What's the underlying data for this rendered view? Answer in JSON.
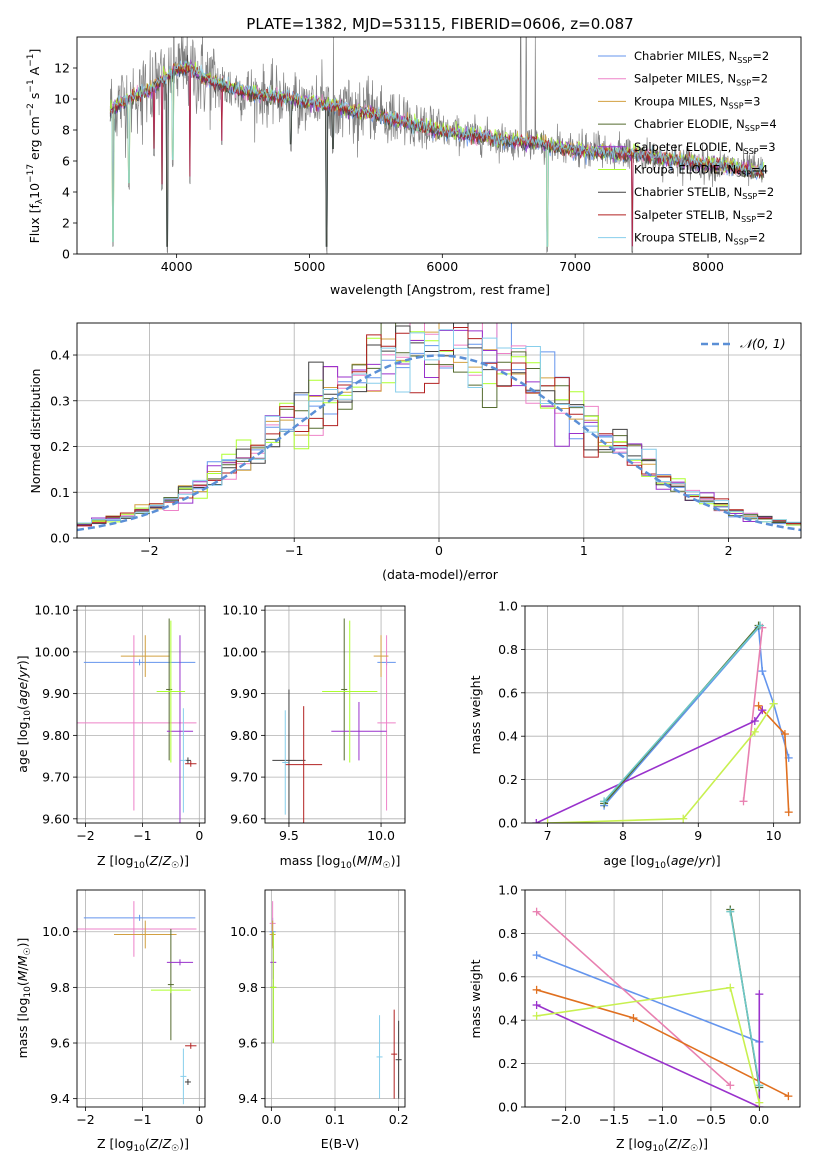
{
  "figure": {
    "title": "PLATE=1382, MJD=53115, FIBERID=0606, z=0.087"
  },
  "series_styles": [
    {
      "name": "Chabrier MILES",
      "legend": "Chabrier MILES, N",
      "sub": "SSP",
      "eq": "=2",
      "color": "#6495ED"
    },
    {
      "name": "Salpeter MILES",
      "legend": "Salpeter MILES, N",
      "sub": "SSP",
      "eq": "=2",
      "color": "#EE82C8"
    },
    {
      "name": "Kroupa MILES",
      "legend": "Kroupa MILES, N",
      "sub": "SSP",
      "eq": "=3",
      "color": "#D2A040"
    },
    {
      "name": "Chabrier ELODIE",
      "legend": "Chabrier ELODIE, N",
      "sub": "SSP",
      "eq": "=4",
      "color": "#556B2F"
    },
    {
      "name": "Salpeter ELODIE",
      "legend": "Salpeter ELODIE, N",
      "sub": "SSP",
      "eq": "=3",
      "color": "#9932CC"
    },
    {
      "name": "Kroupa ELODIE",
      "legend": "Kroupa ELODIE, N",
      "sub": "SSP",
      "eq": "=4",
      "color": "#ADFF2F"
    },
    {
      "name": "Chabrier STELIB",
      "legend": "Chabrier STELIB, N",
      "sub": "SSP",
      "eq": "=2",
      "color": "#404040"
    },
    {
      "name": "Salpeter STELIB",
      "legend": "Salpeter STELIB, N",
      "sub": "SSP",
      "eq": "=2",
      "color": "#B22222"
    },
    {
      "name": "Kroupa STELIB",
      "legend": "Kroupa STELIB, N",
      "sub": "SSP",
      "eq": "=2",
      "color": "#87CEEB"
    }
  ],
  "extra_colors": {
    "data_gray": "#808080",
    "orange": "#E07020",
    "pink": "#E880B0",
    "purple": "#9932CC",
    "lime": "#C8F050",
    "blue": "#6495ED"
  },
  "chart_data": [
    {
      "id": "spectrum",
      "type": "line",
      "xlabel": "wavelength [Angstrom, rest frame]",
      "ylabel": "Flux [f_λ 10^-17 erg cm^-2 s^-1 A^-1]",
      "xlim": [
        3250,
        8700
      ],
      "ylim": [
        0,
        14
      ],
      "xticks": [
        4000,
        5000,
        6000,
        7000,
        8000
      ],
      "yticks": [
        0,
        2,
        4,
        6,
        8,
        10,
        12
      ],
      "grid": false,
      "legend": "top-right",
      "profile": {
        "x": [
          3500,
          3600,
          3700,
          3800,
          3900,
          4000,
          4100,
          4200,
          4400,
          4600,
          4800,
          5000,
          5200,
          5500,
          5800,
          6000,
          6300,
          6500,
          6700,
          7000,
          7200,
          7500,
          7800,
          8000,
          8200,
          8400
        ],
        "y": [
          9.3,
          9.8,
          10.3,
          10.6,
          11.3,
          11.9,
          12.0,
          11.4,
          10.7,
          10.3,
          10.1,
          9.8,
          9.5,
          9.0,
          8.3,
          7.9,
          7.6,
          7.3,
          7.2,
          6.7,
          6.6,
          6.4,
          6.0,
          5.8,
          5.6,
          5.3
        ]
      },
      "dips": [
        [
          3520,
          0.3
        ],
        [
          3640,
          4.1
        ],
        [
          3830,
          6.3
        ],
        [
          3890,
          4.0
        ],
        [
          3930,
          0.0
        ],
        [
          3970,
          5.6
        ],
        [
          4100,
          4.5
        ],
        [
          4340,
          6.8
        ],
        [
          4860,
          6.6
        ],
        [
          5130,
          0.0
        ],
        [
          5175,
          6.3
        ],
        [
          5890,
          7.3
        ],
        [
          6560,
          7.0
        ],
        [
          6790,
          0.0
        ],
        [
          7430,
          0.0
        ]
      ],
      "spikes": [
        [
          5180,
          14
        ],
        [
          6590,
          14
        ],
        [
          6630,
          14
        ],
        [
          6700,
          14
        ]
      ]
    },
    {
      "id": "residuals",
      "type": "histogram",
      "xlabel": "(data-model)/error",
      "ylabel": "Normed distribution",
      "xlim": [
        -2.5,
        2.5
      ],
      "ylim": [
        0,
        0.47
      ],
      "xticks": [
        -2,
        -1,
        0,
        1,
        2
      ],
      "yticks": [
        0.0,
        0.1,
        0.2,
        0.3,
        0.4
      ],
      "grid": true,
      "legend": "top-right",
      "reference": {
        "name": "N(0,1)",
        "label": "𝒩(0, 1)",
        "color": "#5B8FD6"
      },
      "bins": {
        "start": -2.5,
        "width": 0.1
      }
    },
    {
      "id": "age_vs_Z",
      "type": "errorbar",
      "xlabel": "Z [log10(Z/Z☉)]",
      "ylabel": "age  [log10(age/yr)]",
      "xlim": [
        -2.15,
        0.1
      ],
      "ylim": [
        9.59,
        10.11
      ],
      "xticks": [
        -2,
        -1,
        0
      ],
      "yticks": [
        9.6,
        9.7,
        9.8,
        9.9,
        10.0,
        10.1
      ],
      "grid": true,
      "points": [
        {
          "s": "Chabrier MILES",
          "x": -1.05,
          "xe": 0.98,
          "y": 9.975,
          "ye": 0.0
        },
        {
          "s": "Salpeter MILES",
          "x": -1.15,
          "xe": 1.1,
          "y": 9.83,
          "ye": 0.21
        },
        {
          "s": "Kroupa MILES",
          "x": -0.95,
          "xe": 0.43,
          "y": 9.99,
          "ye": 0.05
        },
        {
          "s": "Chabrier ELODIE",
          "x": -0.53,
          "xe": 0.0,
          "y": 9.91,
          "ye": 0.17
        },
        {
          "s": "Salpeter ELODIE",
          "x": -0.34,
          "xe": 0.23,
          "y": 9.81,
          "ye": 0.23
        },
        {
          "s": "Kroupa ELODIE",
          "x": -0.5,
          "xe": 0.25,
          "y": 9.905,
          "ye": 0.17
        },
        {
          "s": "Chabrier STELIB",
          "x": -0.2,
          "xe": 0.03,
          "y": 9.74,
          "ye": 0.0
        },
        {
          "s": "Salpeter STELIB",
          "x": -0.15,
          "xe": 0.1,
          "y": 9.732,
          "ye": 0.0
        },
        {
          "s": "Kroupa STELIB",
          "x": -0.28,
          "xe": 0.0,
          "y": 9.74,
          "ye": 0.125
        }
      ]
    },
    {
      "id": "age_vs_mass",
      "type": "errorbar",
      "xlabel": "mass [log10(M/M☉)]",
      "ylabel": "",
      "xlim": [
        9.37,
        10.13
      ],
      "ylim": [
        9.59,
        10.11
      ],
      "xticks": [
        9.5,
        10.0
      ],
      "yticks": [
        9.6,
        9.7,
        9.8,
        9.9,
        10.0,
        10.1
      ],
      "grid": true,
      "points": [
        {
          "s": "Chabrier MILES",
          "x": 10.03,
          "xe": 0.05,
          "y": 9.975,
          "ye": 0.0
        },
        {
          "s": "Salpeter MILES",
          "x": 10.03,
          "xe": 0.05,
          "y": 9.83,
          "ye": 0.21
        },
        {
          "s": "Kroupa MILES",
          "x": 10.0,
          "xe": 0.04,
          "y": 9.99,
          "ye": 0.05
        },
        {
          "s": "Chabrier ELODIE",
          "x": 9.8,
          "xe": 0.0,
          "y": 9.91,
          "ye": 0.17
        },
        {
          "s": "Salpeter ELODIE",
          "x": 9.88,
          "xe": 0.15,
          "y": 9.81,
          "ye": 0.07
        },
        {
          "s": "Kroupa ELODIE",
          "x": 9.83,
          "xe": 0.15,
          "y": 9.905,
          "ye": 0.17
        },
        {
          "s": "Chabrier STELIB",
          "x": 9.5,
          "xe": 0.09,
          "y": 9.74,
          "ye": 0.17
        },
        {
          "s": "Salpeter STELIB",
          "x": 9.58,
          "xe": 0.1,
          "y": 9.73,
          "ye": 0.14
        },
        {
          "s": "Kroupa STELIB",
          "x": 9.48,
          "xe": 0.0,
          "y": 9.735,
          "ye": 0.125
        }
      ]
    },
    {
      "id": "mw_vs_age",
      "type": "line",
      "xlabel": "age  [log10(age/yr)]",
      "ylabel": "mass weight",
      "xlim": [
        6.7,
        10.35
      ],
      "ylim": [
        0,
        1.0
      ],
      "xticks": [
        7,
        8,
        9,
        10
      ],
      "yticks": [
        0.0,
        0.2,
        0.4,
        0.6,
        0.8,
        1.0
      ],
      "grid": true,
      "lines": [
        {
          "c": "blue",
          "pts": [
            [
              7.75,
              0.08
            ],
            [
              9.8,
              0.9
            ],
            [
              9.85,
              0.7
            ],
            [
              10.0,
              0.55
            ],
            [
              10.2,
              0.3
            ]
          ]
        },
        {
          "c": "pink",
          "pts": [
            [
              9.6,
              0.1
            ],
            [
              9.85,
              0.9
            ]
          ]
        },
        {
          "c": "orange",
          "pts": [
            [
              9.8,
              0.54
            ],
            [
              10.15,
              0.41
            ],
            [
              10.2,
              0.05
            ]
          ]
        },
        {
          "c": "purple",
          "pts": [
            [
              6.85,
              0.0
            ],
            [
              9.75,
              0.47
            ],
            [
              9.85,
              0.52
            ]
          ]
        },
        {
          "c": "lime",
          "pts": [
            [
              7.0,
              0.0
            ],
            [
              8.8,
              0.02
            ],
            [
              9.75,
              0.42
            ],
            [
              10.0,
              0.55
            ]
          ]
        },
        {
          "c": "dark",
          "pts": [
            [
              7.75,
              0.09
            ],
            [
              9.8,
              0.91
            ]
          ]
        },
        {
          "c": "teal",
          "pts": [
            [
              7.75,
              0.1
            ],
            [
              9.82,
              0.91
            ]
          ]
        }
      ]
    },
    {
      "id": "mass_vs_Z",
      "type": "errorbar",
      "xlabel": "Z [log10(Z/Z☉)]",
      "ylabel": "mass [log10(M/M☉)]",
      "xlim": [
        -2.15,
        0.1
      ],
      "ylim": [
        9.37,
        10.15
      ],
      "xticks": [
        -2,
        -1,
        0
      ],
      "yticks": [
        9.4,
        9.6,
        9.8,
        10.0
      ],
      "grid": true,
      "points": [
        {
          "s": "Chabrier MILES",
          "x": -1.05,
          "xe": 0.98,
          "y": 10.05,
          "ye": 0.0
        },
        {
          "s": "Salpeter MILES",
          "x": -1.15,
          "xe": 1.1,
          "y": 10.01,
          "ye": 0.1
        },
        {
          "s": "Kroupa MILES",
          "x": -0.95,
          "xe": 0.55,
          "y": 9.99,
          "ye": 0.05
        },
        {
          "s": "Chabrier ELODIE",
          "x": -0.5,
          "xe": 0.0,
          "y": 9.81,
          "ye": 0.2
        },
        {
          "s": "Salpeter ELODIE",
          "x": -0.34,
          "xe": 0.23,
          "y": 9.89,
          "ye": 0.0
        },
        {
          "s": "Kroupa ELODIE",
          "x": -0.5,
          "xe": 0.35,
          "y": 9.79,
          "ye": 0.0
        },
        {
          "s": "Chabrier STELIB",
          "x": -0.2,
          "xe": 0.05,
          "y": 9.46,
          "ye": 0.0
        },
        {
          "s": "Salpeter STELIB",
          "x": -0.15,
          "xe": 0.1,
          "y": 9.59,
          "ye": 0.0
        },
        {
          "s": "Kroupa STELIB",
          "x": -0.28,
          "xe": 0.0,
          "y": 9.48,
          "ye": 0.1
        }
      ]
    },
    {
      "id": "mass_vs_ebv",
      "type": "errorbar",
      "xlabel": "E(B-V)",
      "ylabel": "",
      "xlim": [
        -0.01,
        0.21
      ],
      "ylim": [
        9.37,
        10.15
      ],
      "xticks": [
        0.0,
        0.1,
        0.2
      ],
      "yticks": [
        9.4,
        9.6,
        9.8,
        10.0
      ],
      "grid": true,
      "points": [
        {
          "s": "Chabrier MILES",
          "x": 0.002,
          "xe": 0.0,
          "y": 10.0,
          "ye": 0.05
        },
        {
          "s": "Salpeter MILES",
          "x": 0.002,
          "xe": 0.0,
          "y": 10.03,
          "ye": 0.08
        },
        {
          "s": "Kroupa MILES",
          "x": 0.002,
          "xe": 0.0,
          "y": 9.99,
          "ye": 0.05
        },
        {
          "s": "Chabrier ELODIE",
          "x": 0.003,
          "xe": 0.0,
          "y": 9.8,
          "ye": 0.2
        },
        {
          "s": "Salpeter ELODIE",
          "x": 0.003,
          "xe": 0.0,
          "y": 9.89,
          "ye": 0.06
        },
        {
          "s": "Kroupa ELODIE",
          "x": 0.003,
          "xe": 0.0,
          "y": 9.8,
          "ye": 0.2
        },
        {
          "s": "Chabrier STELIB",
          "x": 0.2,
          "xe": 0.0,
          "y": 9.54,
          "ye": 0.14
        },
        {
          "s": "Salpeter STELIB",
          "x": 0.193,
          "xe": 0.0,
          "y": 9.56,
          "ye": 0.16
        },
        {
          "s": "Kroupa STELIB",
          "x": 0.17,
          "xe": 0.0,
          "y": 9.55,
          "ye": 0.15
        }
      ]
    },
    {
      "id": "mw_vs_Z",
      "type": "line",
      "xlabel": "Z [log10(Z/Z☉)]",
      "ylabel": "mass weight",
      "xlim": [
        -2.42,
        0.42
      ],
      "ylim": [
        0,
        1.0
      ],
      "xticks": [
        -2.0,
        -1.5,
        -1.0,
        -0.5,
        0.0
      ],
      "yticks": [
        0.0,
        0.2,
        0.4,
        0.6,
        0.8,
        1.0
      ],
      "grid": true,
      "lines": [
        {
          "c": "blue",
          "pts": [
            [
              -2.3,
              0.7
            ],
            [
              0.0,
              0.3
            ]
          ]
        },
        {
          "c": "pink",
          "pts": [
            [
              -2.3,
              0.9
            ],
            [
              -0.3,
              0.1
            ]
          ]
        },
        {
          "c": "orange",
          "pts": [
            [
              -2.3,
              0.54
            ],
            [
              -1.3,
              0.41
            ],
            [
              0.3,
              0.05
            ]
          ]
        },
        {
          "c": "purple",
          "pts": [
            [
              -2.3,
              0.47
            ],
            [
              0.0,
              0.0
            ],
            [
              0.0,
              0.52
            ]
          ]
        },
        {
          "c": "lime",
          "pts": [
            [
              -2.3,
              0.42
            ],
            [
              -0.3,
              0.55
            ],
            [
              0.0,
              0.02
            ]
          ]
        },
        {
          "c": "dark",
          "pts": [
            [
              -0.3,
              0.91
            ],
            [
              0.0,
              0.09
            ]
          ]
        },
        {
          "c": "teal",
          "pts": [
            [
              -0.3,
              0.9
            ],
            [
              0.0,
              0.1
            ]
          ]
        }
      ]
    }
  ]
}
